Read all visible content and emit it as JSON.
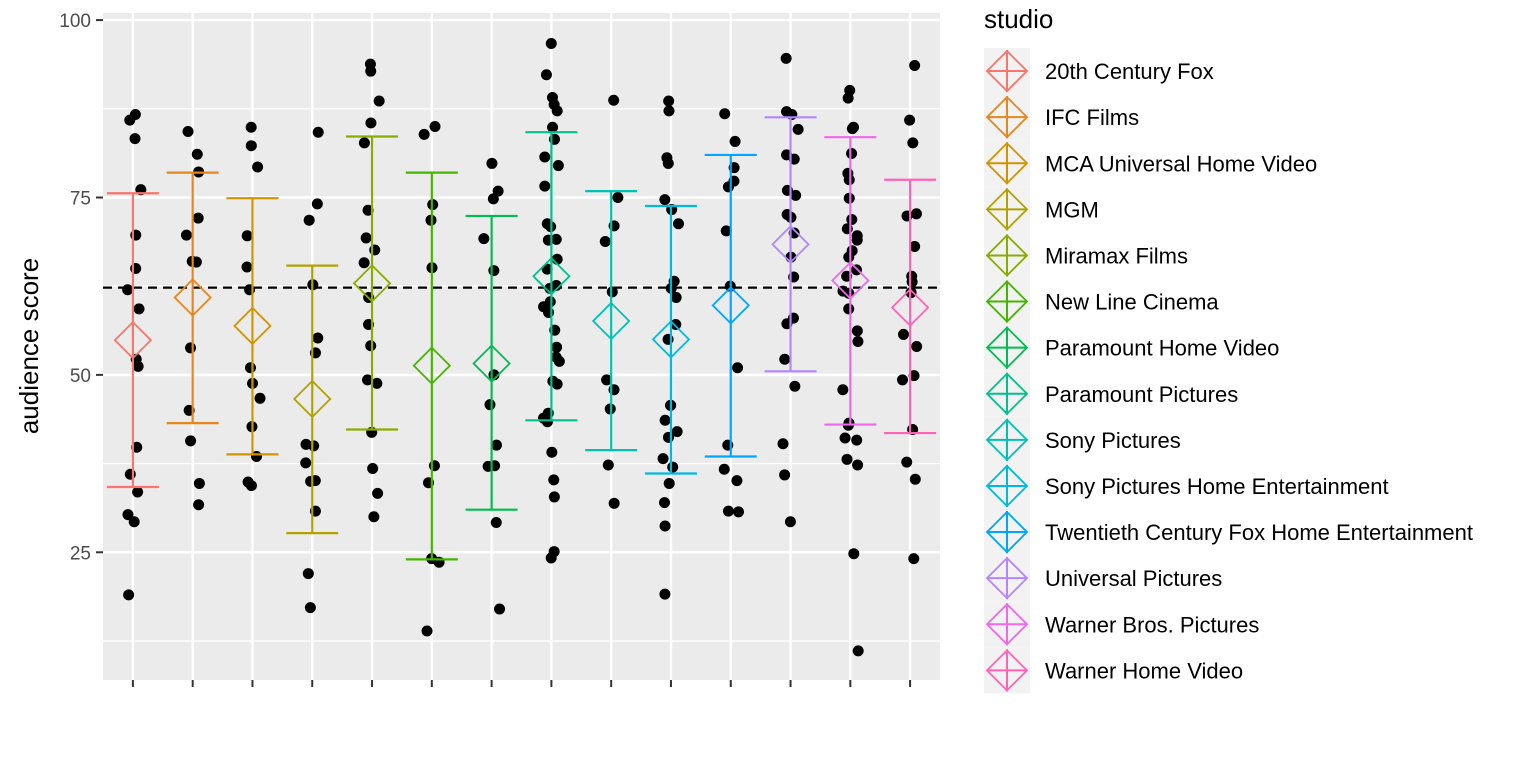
{
  "chart_data": {
    "type": "scatter",
    "xlabel": "",
    "ylabel": "audience score",
    "ylim": [
      7,
      101
    ],
    "yticks": [
      25,
      50,
      75,
      100
    ],
    "reference_line": {
      "y": 62.3,
      "style": "dashed"
    },
    "legend": {
      "title": "studio",
      "placement": "right"
    },
    "grid": true,
    "series": [
      {
        "name": "20th Century Fox",
        "color": "#F8766D",
        "mean": 54.9,
        "lower": 34.2,
        "upper": 75.6,
        "points": [
          86.7,
          85.9,
          83.3,
          76.1,
          69.7,
          65.0,
          62.0,
          59.3,
          52.2,
          51.2,
          39.8,
          36.0,
          33.5,
          30.3,
          29.3,
          19.0
        ]
      },
      {
        "name": "IFC Films",
        "color": "#E7851E",
        "mean": 60.9,
        "lower": 43.2,
        "upper": 78.5,
        "points": [
          84.3,
          81.1,
          78.6,
          72.1,
          69.7,
          66.0,
          65.9,
          53.8,
          45.0,
          40.7,
          34.7,
          31.7
        ]
      },
      {
        "name": "MCA Universal Home Video",
        "color": "#D09400",
        "mean": 56.9,
        "lower": 38.8,
        "upper": 74.9,
        "points": [
          84.9,
          82.3,
          79.3,
          69.6,
          65.2,
          62.0,
          51.0,
          48.8,
          46.7,
          42.7,
          38.5,
          34.9,
          34.4
        ]
      },
      {
        "name": "MGM",
        "color": "#B2A100",
        "mean": 46.6,
        "lower": 27.7,
        "upper": 65.4,
        "points": [
          84.2,
          74.1,
          71.8,
          62.7,
          55.2,
          53.1,
          40.2,
          40.0,
          37.6,
          35.1,
          35.0,
          30.8,
          22.0,
          17.2
        ]
      },
      {
        "name": "Miramax Films",
        "color": "#89AC00",
        "mean": 62.9,
        "lower": 42.3,
        "upper": 83.6,
        "points": [
          93.8,
          92.8,
          88.6,
          85.5,
          82.7,
          73.2,
          69.3,
          67.6,
          65.8,
          60.9,
          57.1,
          54.1,
          49.3,
          48.8,
          41.9,
          36.8,
          33.3,
          30.0
        ]
      },
      {
        "name": "New Line Cinema",
        "color": "#45B500",
        "mean": 51.3,
        "lower": 24.0,
        "upper": 78.5,
        "points": [
          85.0,
          83.9,
          74.0,
          71.8,
          65.1,
          37.2,
          34.8,
          24.1,
          23.6,
          13.9
        ]
      },
      {
        "name": "Paramount Home Video",
        "color": "#00BC51",
        "mean": 51.6,
        "lower": 31.0,
        "upper": 72.4,
        "points": [
          79.8,
          75.9,
          74.8,
          69.2,
          64.7,
          50.0,
          45.8,
          40.1,
          37.2,
          37.1,
          29.2,
          17.0
        ]
      },
      {
        "name": "Paramount Pictures",
        "color": "#00C08E",
        "mean": 63.9,
        "lower": 43.6,
        "upper": 84.2,
        "points": [
          96.7,
          92.3,
          89.1,
          88.1,
          87.2,
          84.9,
          83.2,
          80.7,
          79.5,
          76.6,
          71.3,
          70.9,
          69.1,
          69.0,
          66.3,
          64.9,
          62.6,
          62.2,
          60.3,
          59.6,
          58.8,
          56.3,
          53.9,
          52.5,
          51.9,
          49.1,
          48.7,
          44.6,
          43.9,
          43.4,
          39.1,
          35.2,
          32.8,
          25.1,
          24.2
        ]
      },
      {
        "name": "Sony Pictures",
        "color": "#00C1B2",
        "mean": 57.6,
        "lower": 39.4,
        "upper": 75.9,
        "points": [
          88.7,
          75.0,
          71.0,
          68.8,
          61.7,
          49.3,
          47.9,
          45.2,
          37.3,
          31.9
        ]
      },
      {
        "name": "Sony Pictures Home Entertainment",
        "color": "#00BADE",
        "mean": 55.0,
        "lower": 36.1,
        "upper": 73.8,
        "points": [
          88.6,
          87.2,
          80.6,
          79.8,
          74.7,
          73.3,
          71.3,
          63.2,
          62.2,
          60.9,
          57.1,
          55.0,
          45.7,
          45.7,
          43.6,
          42.0,
          41.2,
          38.2,
          37.0,
          34.7,
          32.0,
          28.7,
          19.1
        ]
      },
      {
        "name": "Twentieth Century Fox Home Entertainment",
        "color": "#00A5FF",
        "mean": 59.8,
        "lower": 38.5,
        "upper": 81.0,
        "points": [
          86.8,
          82.9,
          79.2,
          77.3,
          76.5,
          70.3,
          62.5,
          51.0,
          40.1,
          36.7,
          35.1,
          30.8,
          30.7
        ]
      },
      {
        "name": "Universal Pictures",
        "color": "#B385FF",
        "mean": 68.4,
        "lower": 50.5,
        "upper": 86.3,
        "points": [
          94.6,
          87.1,
          86.7,
          84.6,
          81.0,
          80.4,
          76.0,
          75.3,
          72.6,
          72.2,
          70.0,
          66.6,
          63.8,
          58.0,
          57.2,
          52.2,
          48.4,
          40.3,
          35.9,
          29.3
        ]
      },
      {
        "name": "Warner Bros. Pictures",
        "color": "#EF67EB",
        "mean": 63.3,
        "lower": 43.0,
        "upper": 83.5,
        "points": [
          90.1,
          89.0,
          84.9,
          84.7,
          81.2,
          78.4,
          77.5,
          74.9,
          71.9,
          70.6,
          69.6,
          69.0,
          67.5,
          66.6,
          64.8,
          63.9,
          61.8,
          61.5,
          59.3,
          56.2,
          54.7,
          47.9,
          43.2,
          42.9,
          41.1,
          40.8,
          38.1,
          37.3,
          24.8,
          11.1
        ]
      },
      {
        "name": "Warner Home Video",
        "color": "#FF63B6",
        "mean": 59.5,
        "lower": 41.8,
        "upper": 77.5,
        "points": [
          93.6,
          85.9,
          82.7,
          72.7,
          72.4,
          68.1,
          63.9,
          63.1,
          61.6,
          55.7,
          54.0,
          49.9,
          49.3,
          42.3,
          37.7,
          35.3,
          24.1
        ]
      }
    ]
  }
}
